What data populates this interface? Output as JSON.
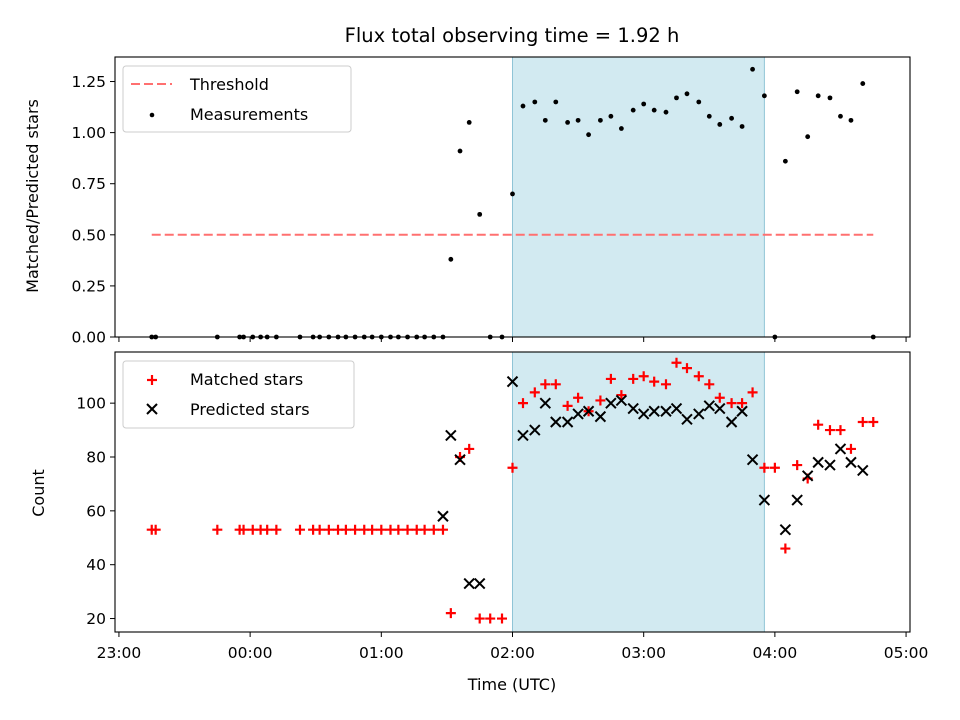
{
  "chart_data": [
    {
      "type": "scatter",
      "title": "Flux total observing time = 1.92 h",
      "xlabel": "",
      "ylabel": "Matched/Predicted stars",
      "ylim": [
        0,
        1.37
      ],
      "xlim": [
        -1.03,
        5.03
      ],
      "yticks": [
        0.0,
        0.25,
        0.5,
        0.75,
        1.0,
        1.25
      ],
      "ytick_labels": [
        "0.00",
        "0.25",
        "0.50",
        "0.75",
        "1.00",
        "1.25"
      ],
      "shaded_region": {
        "start": 2.0,
        "end": 3.92,
        "color": "#add8e6"
      },
      "threshold": {
        "name": "Threshold",
        "value": 0.5,
        "x_start": -0.75,
        "x_end": 4.75,
        "color": "#ff7070"
      },
      "legend": [
        "Threshold",
        "Measurements"
      ],
      "legend_position": "top-left",
      "measurements": {
        "name": "Measurements",
        "x": [
          -0.75,
          -0.72,
          -0.25,
          -0.08,
          -0.05,
          0.02,
          0.08,
          0.13,
          0.2,
          0.38,
          0.48,
          0.53,
          0.6,
          0.67,
          0.73,
          0.8,
          0.87,
          0.93,
          1.0,
          1.07,
          1.13,
          1.2,
          1.27,
          1.33,
          1.4,
          1.47,
          1.53,
          1.6,
          1.67,
          1.75,
          1.83,
          1.92,
          2.0,
          2.08,
          2.17,
          2.25,
          2.33,
          2.42,
          2.5,
          2.58,
          2.67,
          2.75,
          2.83,
          2.92,
          3.0,
          3.08,
          3.17,
          3.25,
          3.33,
          3.42,
          3.5,
          3.58,
          3.67,
          3.75,
          3.83,
          3.92,
          4.0,
          4.08,
          4.17,
          4.25,
          4.33,
          4.42,
          4.5,
          4.58,
          4.67,
          4.75
        ],
        "y": [
          0,
          0,
          0,
          0,
          0,
          0,
          0,
          0,
          0,
          0,
          0,
          0,
          0,
          0,
          0,
          0,
          0,
          0,
          0,
          0,
          0,
          0,
          0,
          0,
          0,
          0,
          0.38,
          0.91,
          1.05,
          0.6,
          0,
          0,
          0.7,
          1.13,
          1.15,
          1.06,
          1.15,
          1.05,
          1.06,
          0.99,
          1.06,
          1.08,
          1.02,
          1.11,
          1.14,
          1.11,
          1.1,
          1.17,
          1.19,
          1.15,
          1.08,
          1.04,
          1.07,
          1.03,
          1.31,
          1.18,
          0,
          0.86,
          1.2,
          0.98,
          1.18,
          1.17,
          1.08,
          1.06,
          1.24,
          0
        ]
      }
    },
    {
      "type": "scatter",
      "title": "",
      "xlabel": "Time (UTC)",
      "ylabel": "Count",
      "ylim": [
        15,
        119
      ],
      "xlim": [
        -1.03,
        5.03
      ],
      "yticks": [
        20,
        40,
        60,
        80,
        100
      ],
      "ytick_labels": [
        "20",
        "40",
        "60",
        "80",
        "100"
      ],
      "xticks": [
        -1,
        0,
        1,
        2,
        3,
        4,
        5
      ],
      "xtick_labels": [
        "23:00",
        "00:00",
        "01:00",
        "02:00",
        "03:00",
        "04:00",
        "05:00"
      ],
      "shaded_region": {
        "start": 2.0,
        "end": 3.92,
        "color": "#add8e6"
      },
      "legend": [
        "Matched stars",
        "Predicted stars"
      ],
      "legend_position": "top-left",
      "series": [
        {
          "name": "Matched stars",
          "marker": "+",
          "color": "#ff0000",
          "x": [
            -0.75,
            -0.72,
            -0.25,
            -0.08,
            -0.05,
            0.02,
            0.08,
            0.13,
            0.2,
            0.38,
            0.48,
            0.53,
            0.6,
            0.67,
            0.73,
            0.8,
            0.87,
            0.93,
            1.0,
            1.07,
            1.13,
            1.2,
            1.27,
            1.33,
            1.4,
            1.47,
            1.53,
            1.6,
            1.67,
            1.75,
            1.83,
            1.92,
            2.0,
            2.08,
            2.17,
            2.25,
            2.33,
            2.42,
            2.5,
            2.58,
            2.67,
            2.75,
            2.83,
            2.92,
            3.0,
            3.08,
            3.17,
            3.25,
            3.33,
            3.42,
            3.5,
            3.58,
            3.67,
            3.75,
            3.83,
            3.92,
            4.0,
            4.08,
            4.17,
            4.25,
            4.33,
            4.42,
            4.5,
            4.58,
            4.67,
            4.75
          ],
          "y": [
            53,
            53,
            53,
            53,
            53,
            53,
            53,
            53,
            53,
            53,
            53,
            53,
            53,
            53,
            53,
            53,
            53,
            53,
            53,
            53,
            53,
            53,
            53,
            53,
            53,
            53,
            22,
            80,
            83,
            20,
            20,
            20,
            76,
            100,
            104,
            107,
            107,
            99,
            102,
            97,
            101,
            109,
            103,
            109,
            110,
            108,
            107,
            115,
            113,
            110,
            107,
            102,
            100,
            100,
            104,
            76,
            76,
            46,
            77,
            72,
            92,
            90,
            90,
            83,
            93,
            93
          ]
        },
        {
          "name": "Predicted stars",
          "marker": "x",
          "color": "#000000",
          "x": [
            1.47,
            1.53,
            1.6,
            1.67,
            1.75,
            2.0,
            2.08,
            2.17,
            2.25,
            2.33,
            2.42,
            2.5,
            2.58,
            2.67,
            2.75,
            2.83,
            2.92,
            3.0,
            3.08,
            3.17,
            3.25,
            3.33,
            3.42,
            3.5,
            3.58,
            3.67,
            3.75,
            3.83,
            3.92,
            4.08,
            4.17,
            4.25,
            4.33,
            4.42,
            4.5,
            4.58,
            4.67
          ],
          "y": [
            58,
            88,
            79,
            33,
            33,
            108,
            88,
            90,
            100,
            93,
            93,
            96,
            97,
            95,
            100,
            101,
            98,
            96,
            97,
            97,
            98,
            94,
            96,
            99,
            98,
            93,
            97,
            79,
            64,
            53,
            64,
            73,
            78,
            77,
            83,
            78,
            75
          ]
        }
      ]
    }
  ]
}
